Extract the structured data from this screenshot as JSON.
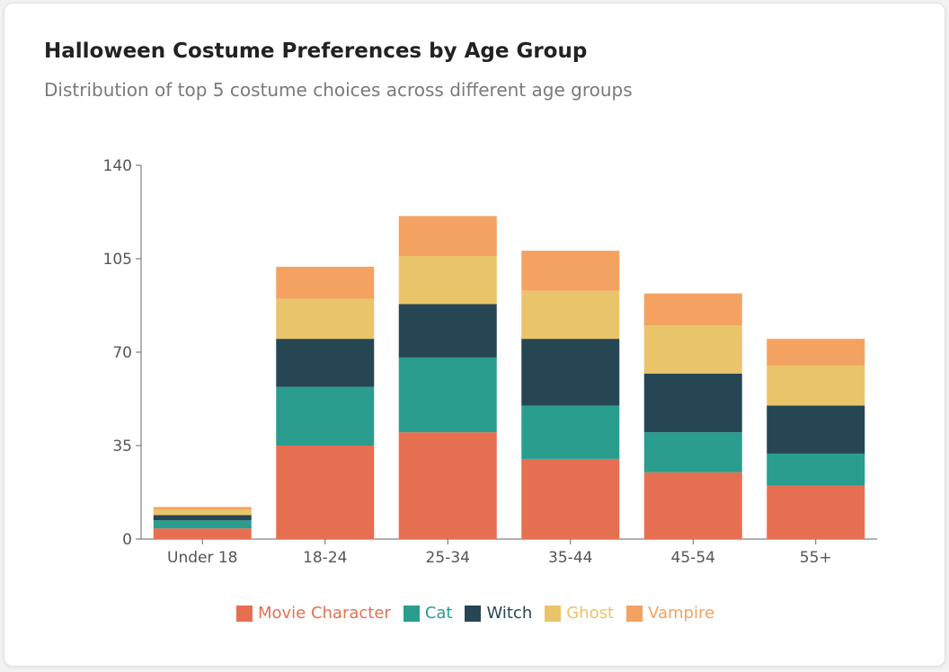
{
  "header": {
    "title": "Halloween Costume Preferences by Age Group",
    "subtitle": "Distribution of top 5 costume choices across different age groups"
  },
  "chart_data": {
    "type": "bar",
    "stacked": true,
    "title": "Halloween Costume Preferences by Age Group",
    "subtitle": "Distribution of top 5 costume choices across different age groups",
    "categories": [
      "Under 18",
      "18-24",
      "25-34",
      "35-44",
      "45-54",
      "55+"
    ],
    "ylim": [
      0,
      140
    ],
    "yticks": [
      0,
      35,
      70,
      105,
      140
    ],
    "grid": false,
    "legend_position": "bottom",
    "series": [
      {
        "name": "Movie Character",
        "color": "#e76f51",
        "values": [
          4,
          35,
          40,
          30,
          25,
          20
        ]
      },
      {
        "name": "Cat",
        "color": "#2a9d8f",
        "values": [
          3,
          22,
          28,
          20,
          15,
          12
        ]
      },
      {
        "name": "Witch",
        "color": "#264653",
        "values": [
          2,
          18,
          20,
          25,
          22,
          18
        ]
      },
      {
        "name": "Ghost",
        "color": "#e9c46a",
        "values": [
          2,
          15,
          18,
          18,
          18,
          15
        ]
      },
      {
        "name": "Vampire",
        "color": "#f4a261",
        "values": [
          1,
          12,
          15,
          15,
          12,
          10
        ]
      }
    ]
  }
}
